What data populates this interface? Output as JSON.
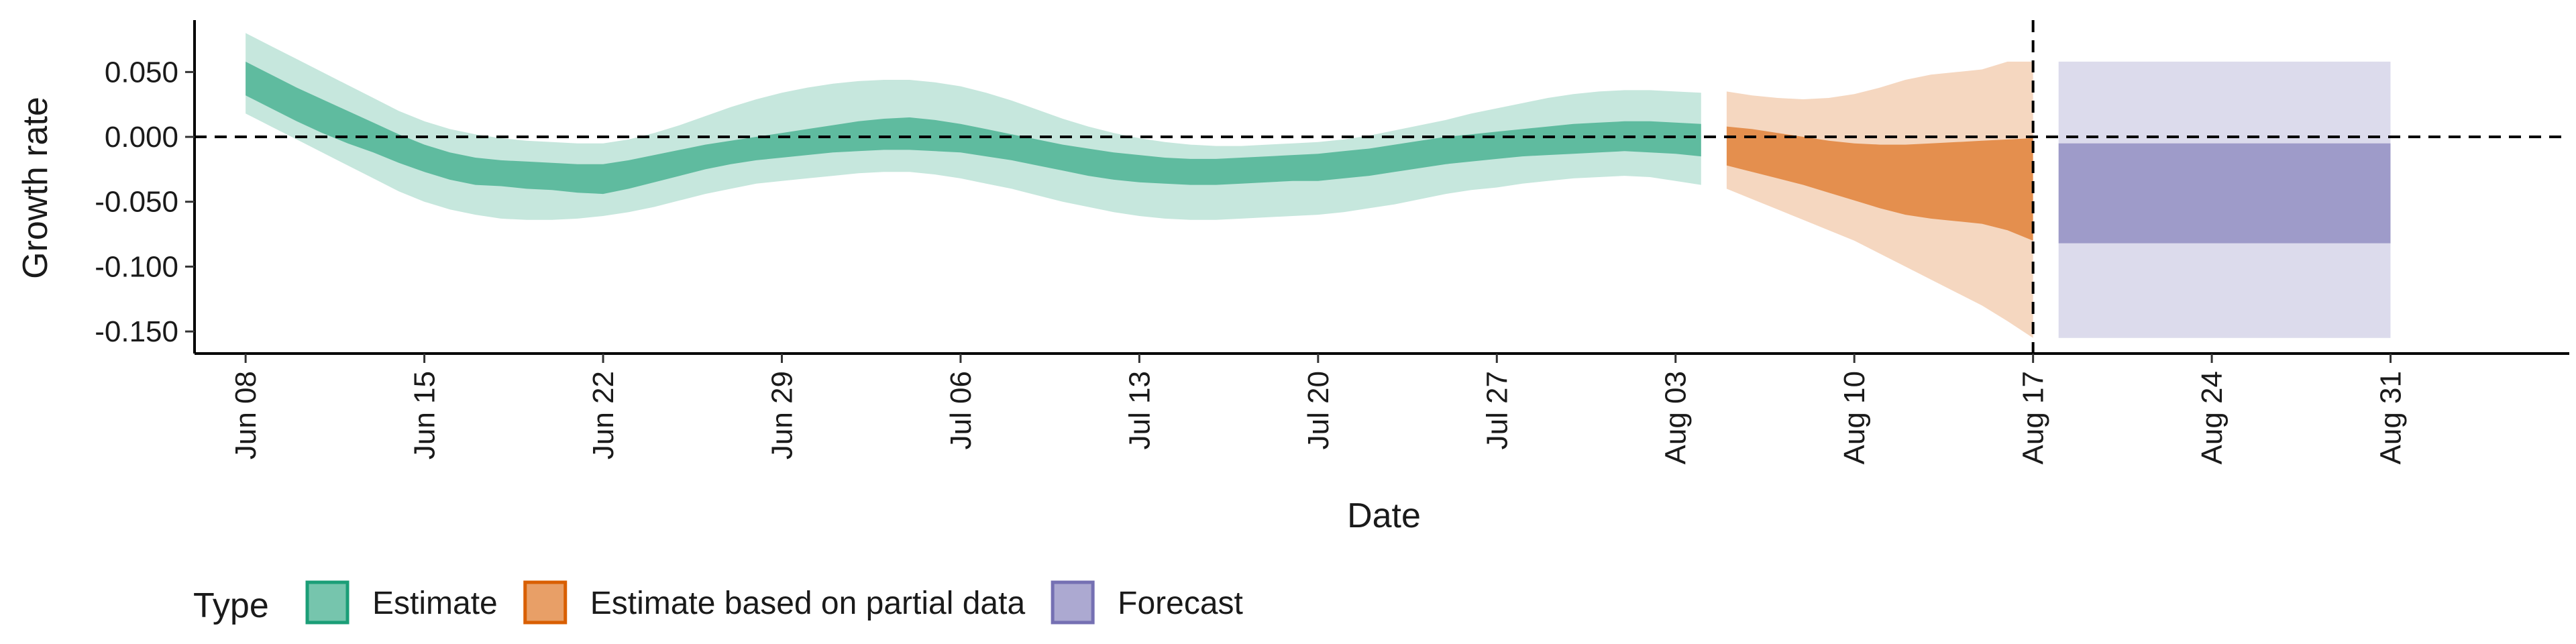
{
  "chart_data": {
    "type": "area",
    "xlabel": "Date",
    "ylabel": "Growth rate",
    "x_tick_labels": [
      "Jun 08",
      "Jun 15",
      "Jun 22",
      "Jun 29",
      "Jul 06",
      "Jul 13",
      "Jul 20",
      "Jul 27",
      "Aug 03",
      "Aug 10",
      "Aug 17",
      "Aug 24",
      "Aug 31"
    ],
    "x_ticks": [
      "2020-06-08",
      "2020-06-15",
      "2020-06-22",
      "2020-06-29",
      "2020-07-06",
      "2020-07-13",
      "2020-07-20",
      "2020-07-27",
      "2020-08-03",
      "2020-08-10",
      "2020-08-17",
      "2020-08-24",
      "2020-08-31"
    ],
    "xlim": [
      "2020-06-06",
      "2020-09-07"
    ],
    "y_tick_labels": [
      "0.050",
      "0.000",
      "-0.050",
      "-0.100",
      "-0.150"
    ],
    "y_ticks": [
      0.05,
      0.0,
      -0.05,
      -0.1,
      -0.15
    ],
    "ylim": [
      -0.167,
      0.09
    ],
    "reference_lines": {
      "horizontal_y": 0.0,
      "vertical_x": "2020-08-17"
    },
    "grid": false,
    "legend": {
      "title": "Type",
      "position": "bottom-left"
    },
    "series": [
      {
        "name": "Estimate",
        "color": "#1b9e77",
        "x": [
          "2020-06-08",
          "2020-06-09",
          "2020-06-10",
          "2020-06-11",
          "2020-06-12",
          "2020-06-13",
          "2020-06-14",
          "2020-06-15",
          "2020-06-16",
          "2020-06-17",
          "2020-06-18",
          "2020-06-19",
          "2020-06-20",
          "2020-06-21",
          "2020-06-22",
          "2020-06-23",
          "2020-06-24",
          "2020-06-25",
          "2020-06-26",
          "2020-06-27",
          "2020-06-28",
          "2020-06-29",
          "2020-06-30",
          "2020-07-01",
          "2020-07-02",
          "2020-07-03",
          "2020-07-04",
          "2020-07-05",
          "2020-07-06",
          "2020-07-07",
          "2020-07-08",
          "2020-07-09",
          "2020-07-10",
          "2020-07-11",
          "2020-07-12",
          "2020-07-13",
          "2020-07-14",
          "2020-07-15",
          "2020-07-16",
          "2020-07-17",
          "2020-07-18",
          "2020-07-19",
          "2020-07-20",
          "2020-07-21",
          "2020-07-22",
          "2020-07-23",
          "2020-07-24",
          "2020-07-25",
          "2020-07-26",
          "2020-07-27",
          "2020-07-28",
          "2020-07-29",
          "2020-07-30",
          "2020-07-31",
          "2020-08-01",
          "2020-08-02",
          "2020-08-03",
          "2020-08-04"
        ],
        "lower_90": [
          0.018,
          0.008,
          -0.002,
          -0.012,
          -0.022,
          -0.032,
          -0.042,
          -0.05,
          -0.056,
          -0.06,
          -0.063,
          -0.064,
          -0.064,
          -0.063,
          -0.061,
          -0.058,
          -0.054,
          -0.049,
          -0.044,
          -0.04,
          -0.036,
          -0.034,
          -0.032,
          -0.03,
          -0.028,
          -0.027,
          -0.027,
          -0.029,
          -0.032,
          -0.036,
          -0.04,
          -0.045,
          -0.05,
          -0.054,
          -0.058,
          -0.061,
          -0.063,
          -0.064,
          -0.064,
          -0.063,
          -0.062,
          -0.061,
          -0.06,
          -0.058,
          -0.055,
          -0.052,
          -0.048,
          -0.044,
          -0.041,
          -0.039,
          -0.036,
          -0.034,
          -0.032,
          -0.031,
          -0.03,
          -0.031,
          -0.034,
          -0.037
        ],
        "lower_50": [
          0.032,
          0.022,
          0.012,
          0.003,
          -0.005,
          -0.012,
          -0.02,
          -0.027,
          -0.033,
          -0.037,
          -0.038,
          -0.04,
          -0.041,
          -0.043,
          -0.044,
          -0.04,
          -0.035,
          -0.03,
          -0.025,
          -0.021,
          -0.018,
          -0.016,
          -0.014,
          -0.012,
          -0.011,
          -0.01,
          -0.01,
          -0.011,
          -0.012,
          -0.015,
          -0.018,
          -0.022,
          -0.026,
          -0.03,
          -0.033,
          -0.035,
          -0.036,
          -0.037,
          -0.037,
          -0.036,
          -0.035,
          -0.034,
          -0.034,
          -0.032,
          -0.03,
          -0.027,
          -0.024,
          -0.021,
          -0.019,
          -0.017,
          -0.015,
          -0.014,
          -0.013,
          -0.012,
          -0.011,
          -0.012,
          -0.013,
          -0.015
        ],
        "upper_50": [
          0.058,
          0.048,
          0.038,
          0.029,
          0.02,
          0.011,
          0.002,
          -0.006,
          -0.012,
          -0.016,
          -0.018,
          -0.019,
          -0.02,
          -0.021,
          -0.021,
          -0.018,
          -0.014,
          -0.01,
          -0.006,
          -0.003,
          0.0,
          0.003,
          0.006,
          0.009,
          0.012,
          0.014,
          0.015,
          0.013,
          0.01,
          0.006,
          0.002,
          -0.002,
          -0.006,
          -0.009,
          -0.012,
          -0.014,
          -0.016,
          -0.017,
          -0.017,
          -0.016,
          -0.015,
          -0.014,
          -0.013,
          -0.011,
          -0.009,
          -0.006,
          -0.003,
          0.0,
          0.002,
          0.004,
          0.006,
          0.008,
          0.01,
          0.011,
          0.012,
          0.012,
          0.011,
          0.01
        ],
        "upper_90": [
          0.08,
          0.07,
          0.06,
          0.05,
          0.04,
          0.03,
          0.02,
          0.012,
          0.006,
          0.002,
          -0.001,
          -0.003,
          -0.004,
          -0.005,
          -0.005,
          -0.002,
          0.003,
          0.009,
          0.016,
          0.023,
          0.029,
          0.034,
          0.038,
          0.041,
          0.043,
          0.044,
          0.044,
          0.042,
          0.039,
          0.034,
          0.028,
          0.021,
          0.014,
          0.008,
          0.003,
          -0.001,
          -0.004,
          -0.006,
          -0.007,
          -0.007,
          -0.006,
          -0.005,
          -0.004,
          -0.002,
          0.001,
          0.005,
          0.009,
          0.013,
          0.018,
          0.022,
          0.026,
          0.03,
          0.033,
          0.035,
          0.036,
          0.036,
          0.035,
          0.034
        ]
      },
      {
        "name": "Estimate based on partial data",
        "color": "#d95f02",
        "x": [
          "2020-08-05",
          "2020-08-06",
          "2020-08-07",
          "2020-08-08",
          "2020-08-09",
          "2020-08-10",
          "2020-08-11",
          "2020-08-12",
          "2020-08-13",
          "2020-08-14",
          "2020-08-15",
          "2020-08-16",
          "2020-08-17"
        ],
        "lower_90": [
          -0.04,
          -0.048,
          -0.056,
          -0.064,
          -0.072,
          -0.08,
          -0.09,
          -0.1,
          -0.11,
          -0.12,
          -0.13,
          -0.142,
          -0.155
        ],
        "lower_50": [
          -0.022,
          -0.027,
          -0.032,
          -0.037,
          -0.043,
          -0.049,
          -0.055,
          -0.06,
          -0.063,
          -0.065,
          -0.067,
          -0.072,
          -0.08
        ],
        "upper_50": [
          0.008,
          0.006,
          0.003,
          0.0,
          -0.003,
          -0.005,
          -0.006,
          -0.006,
          -0.005,
          -0.004,
          -0.003,
          -0.002,
          -0.001
        ],
        "upper_90": [
          0.035,
          0.032,
          0.03,
          0.029,
          0.03,
          0.033,
          0.038,
          0.044,
          0.048,
          0.05,
          0.052,
          0.058,
          0.058
        ]
      },
      {
        "name": "Forecast",
        "color": "#7570b3",
        "x": [
          "2020-08-18",
          "2020-08-31"
        ],
        "lower_90": [
          -0.155,
          -0.155
        ],
        "lower_50": [
          -0.082,
          -0.082
        ],
        "upper_50": [
          -0.005,
          -0.005
        ],
        "upper_90": [
          0.058,
          0.058
        ]
      }
    ]
  }
}
